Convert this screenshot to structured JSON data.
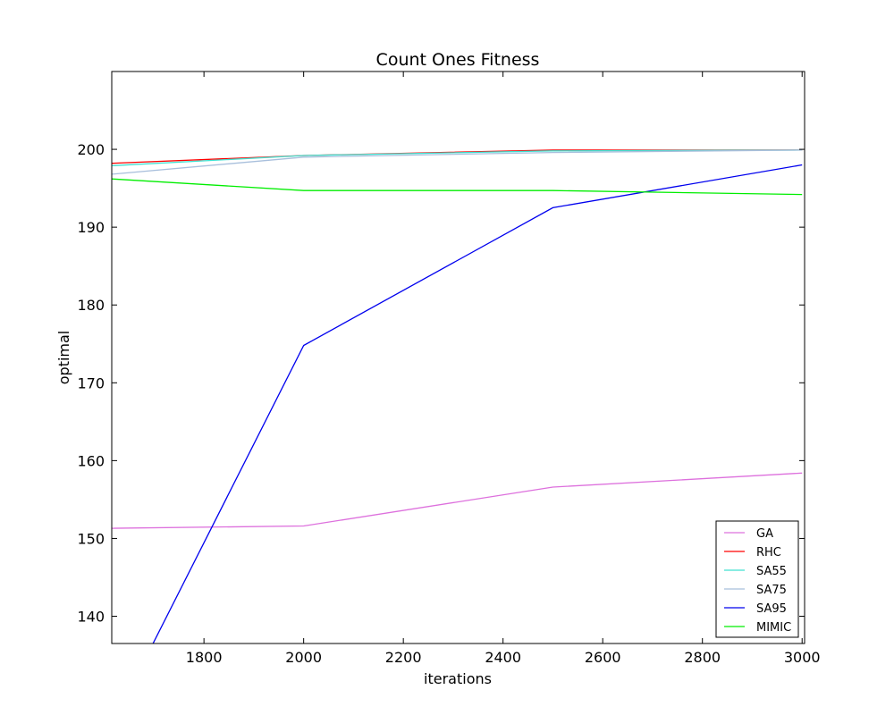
{
  "chart_data": {
    "type": "line",
    "title": "Count Ones Fitness",
    "xlabel": "iterations",
    "ylabel": "optimal",
    "xlim": [
      1615,
      3005
    ],
    "ylim": [
      136.5,
      210
    ],
    "xticks": [
      1800,
      2000,
      2200,
      2400,
      2600,
      2800,
      3000
    ],
    "yticks": [
      140,
      150,
      160,
      170,
      180,
      190,
      200
    ],
    "grid": false,
    "legend_position": "lower-right",
    "x": [
      1615,
      2000,
      2500,
      3000
    ],
    "series": [
      {
        "name": "GA",
        "color": "#dd70dd",
        "values": [
          151.3,
          151.6,
          156.6,
          158.4
        ]
      },
      {
        "name": "RHC",
        "color": "#ff0000",
        "values": [
          198.2,
          199.2,
          199.9,
          199.9
        ]
      },
      {
        "name": "SA55",
        "color": "#40e0d0",
        "values": [
          197.9,
          199.2,
          199.8,
          199.9
        ]
      },
      {
        "name": "SA75",
        "color": "#a8bfdc",
        "values": [
          196.8,
          199.0,
          199.6,
          199.9
        ]
      },
      {
        "name": "SA95",
        "color": "#0000ee",
        "values": [
          126.0,
          174.8,
          192.5,
          198.0
        ]
      },
      {
        "name": "MIMIC",
        "color": "#00ee00",
        "values": [
          196.2,
          194.7,
          194.7,
          194.2
        ]
      }
    ]
  }
}
